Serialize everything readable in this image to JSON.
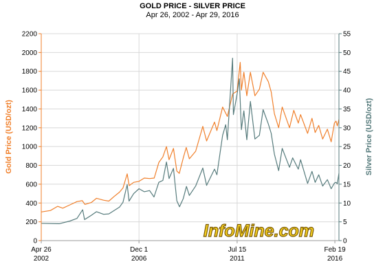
{
  "chart_data": {
    "type": "line",
    "title": "GOLD PRICE - SILVER PRICE",
    "subtitle": "Apr 26, 2002 - Apr 29, 2016",
    "ylabel": "Gold Price (USD/ozt)",
    "y2label": "Silver Price (USD/ozt)",
    "ylim": [
      0,
      2200
    ],
    "y2lim": [
      0,
      55
    ],
    "xlim": [
      "2002-04-26",
      "2016-04-29"
    ],
    "grid": true,
    "left_ticks": [
      "0",
      "200",
      "400",
      "600",
      "800",
      "1000",
      "1200",
      "1400",
      "1600",
      "1800",
      "2000",
      "2200"
    ],
    "right_ticks": [
      "0",
      "5",
      "10",
      "15",
      "20",
      "25",
      "30",
      "35",
      "40",
      "45",
      "50",
      "55"
    ],
    "x_ticks": [
      {
        "date": "2002-04-26",
        "line1": "Apr 26",
        "line2": "2002"
      },
      {
        "date": "2006-12-01",
        "line1": "Dec 1",
        "line2": "2006"
      },
      {
        "date": "2011-07-15",
        "line1": "Jul 15",
        "line2": "2011"
      },
      {
        "date": "2016-02-19",
        "line1": "Feb 19",
        "line2": "2016"
      }
    ],
    "watermark": "InfoMine.com",
    "series": [
      {
        "axis": "left",
        "color": "#f07f2a",
        "points": [
          [
            "2002-04-26",
            305
          ],
          [
            "2002-10-01",
            320
          ],
          [
            "2003-02-01",
            365
          ],
          [
            "2003-05-01",
            345
          ],
          [
            "2003-09-01",
            380
          ],
          [
            "2003-12-31",
            415
          ],
          [
            "2004-04-01",
            425
          ],
          [
            "2004-05-15",
            385
          ],
          [
            "2004-09-01",
            405
          ],
          [
            "2004-12-01",
            450
          ],
          [
            "2005-04-01",
            430
          ],
          [
            "2005-07-01",
            420
          ],
          [
            "2005-10-01",
            470
          ],
          [
            "2005-12-31",
            515
          ],
          [
            "2006-03-01",
            560
          ],
          [
            "2006-05-12",
            710
          ],
          [
            "2006-06-15",
            585
          ],
          [
            "2006-09-01",
            620
          ],
          [
            "2006-12-01",
            630
          ],
          [
            "2007-03-01",
            665
          ],
          [
            "2007-06-01",
            660
          ],
          [
            "2007-08-20",
            665
          ],
          [
            "2007-11-07",
            830
          ],
          [
            "2008-01-15",
            890
          ],
          [
            "2008-03-17",
            1000
          ],
          [
            "2008-05-01",
            860
          ],
          [
            "2008-07-15",
            980
          ],
          [
            "2008-09-11",
            740
          ],
          [
            "2008-10-24",
            715
          ],
          [
            "2008-12-31",
            880
          ],
          [
            "2009-02-20",
            990
          ],
          [
            "2009-04-15",
            870
          ],
          [
            "2009-08-01",
            950
          ],
          [
            "2009-12-02",
            1215
          ],
          [
            "2010-02-05",
            1060
          ],
          [
            "2010-06-21",
            1260
          ],
          [
            "2010-08-01",
            1170
          ],
          [
            "2010-11-08",
            1420
          ],
          [
            "2011-01-28",
            1320
          ],
          [
            "2011-04-29",
            1560
          ],
          [
            "2011-07-15",
            1590
          ],
          [
            "2011-09-06",
            1895
          ],
          [
            "2011-09-26",
            1600
          ],
          [
            "2011-11-08",
            1790
          ],
          [
            "2011-12-29",
            1540
          ],
          [
            "2012-02-28",
            1790
          ],
          [
            "2012-05-16",
            1540
          ],
          [
            "2012-08-01",
            1610
          ],
          [
            "2012-10-04",
            1790
          ],
          [
            "2013-01-01",
            1690
          ],
          [
            "2013-02-20",
            1580
          ],
          [
            "2013-04-15",
            1350
          ],
          [
            "2013-06-28",
            1200
          ],
          [
            "2013-08-28",
            1420
          ],
          [
            "2013-12-31",
            1200
          ],
          [
            "2014-03-14",
            1385
          ],
          [
            "2014-06-01",
            1250
          ],
          [
            "2014-07-10",
            1340
          ],
          [
            "2014-11-07",
            1140
          ],
          [
            "2015-01-22",
            1300
          ],
          [
            "2015-03-17",
            1150
          ],
          [
            "2015-05-18",
            1225
          ],
          [
            "2015-07-24",
            1080
          ],
          [
            "2015-10-14",
            1185
          ],
          [
            "2015-12-17",
            1050
          ],
          [
            "2016-02-11",
            1250
          ],
          [
            "2016-03-10",
            1270
          ],
          [
            "2016-04-01",
            1220
          ],
          [
            "2016-04-29",
            1290
          ]
        ]
      },
      {
        "axis": "right",
        "color": "#557a7b",
        "points": [
          [
            "2002-04-26",
            4.6
          ],
          [
            "2003-03-01",
            4.5
          ],
          [
            "2003-09-01",
            5.2
          ],
          [
            "2003-12-31",
            5.9
          ],
          [
            "2004-04-06",
            8.2
          ],
          [
            "2004-05-10",
            5.6
          ],
          [
            "2004-09-01",
            6.7
          ],
          [
            "2004-12-01",
            7.7
          ],
          [
            "2005-04-01",
            7.0
          ],
          [
            "2005-07-01",
            7.1
          ],
          [
            "2005-12-31",
            8.9
          ],
          [
            "2006-03-01",
            10.2
          ],
          [
            "2006-05-12",
            14.9
          ],
          [
            "2006-06-13",
            10.5
          ],
          [
            "2006-09-01",
            12.5
          ],
          [
            "2006-12-01",
            13.8
          ],
          [
            "2007-03-01",
            13.0
          ],
          [
            "2007-06-01",
            13.3
          ],
          [
            "2007-08-16",
            11.6
          ],
          [
            "2007-11-07",
            15.5
          ],
          [
            "2008-01-15",
            16.0
          ],
          [
            "2008-03-17",
            20.9
          ],
          [
            "2008-05-01",
            16.5
          ],
          [
            "2008-07-15",
            19.2
          ],
          [
            "2008-09-11",
            10.6
          ],
          [
            "2008-10-27",
            9.0
          ],
          [
            "2008-12-31",
            11.2
          ],
          [
            "2009-02-24",
            14.4
          ],
          [
            "2009-04-15",
            12.0
          ],
          [
            "2009-08-01",
            14.5
          ],
          [
            "2009-12-02",
            19.3
          ],
          [
            "2010-02-05",
            14.7
          ],
          [
            "2010-06-21",
            19.0
          ],
          [
            "2010-08-01",
            17.5
          ],
          [
            "2010-11-08",
            28.0
          ],
          [
            "2010-12-31",
            30.8
          ],
          [
            "2011-01-28",
            26.8
          ],
          [
            "2011-04-28",
            48.5
          ],
          [
            "2011-05-12",
            33.5
          ],
          [
            "2011-07-15",
            39.0
          ],
          [
            "2011-08-22",
            43.0
          ],
          [
            "2011-09-26",
            29.5
          ],
          [
            "2011-11-08",
            34.5
          ],
          [
            "2011-12-29",
            26.8
          ],
          [
            "2012-02-28",
            37.0
          ],
          [
            "2012-05-16",
            27.0
          ],
          [
            "2012-08-01",
            28.0
          ],
          [
            "2012-10-04",
            34.8
          ],
          [
            "2013-01-01",
            31.0
          ],
          [
            "2013-02-20",
            28.5
          ],
          [
            "2013-04-15",
            23.0
          ],
          [
            "2013-06-28",
            18.6
          ],
          [
            "2013-08-28",
            24.5
          ],
          [
            "2013-12-31",
            19.5
          ],
          [
            "2014-02-24",
            22.0
          ],
          [
            "2014-06-01",
            19.0
          ],
          [
            "2014-07-10",
            21.5
          ],
          [
            "2014-11-07",
            15.2
          ],
          [
            "2015-01-22",
            18.4
          ],
          [
            "2015-03-17",
            15.5
          ],
          [
            "2015-05-18",
            17.5
          ],
          [
            "2015-07-24",
            14.5
          ],
          [
            "2015-10-14",
            16.2
          ],
          [
            "2015-12-17",
            13.8
          ],
          [
            "2016-02-11",
            15.3
          ],
          [
            "2016-03-10",
            15.5
          ],
          [
            "2016-04-01",
            15.1
          ],
          [
            "2016-04-29",
            17.9
          ]
        ]
      }
    ]
  }
}
